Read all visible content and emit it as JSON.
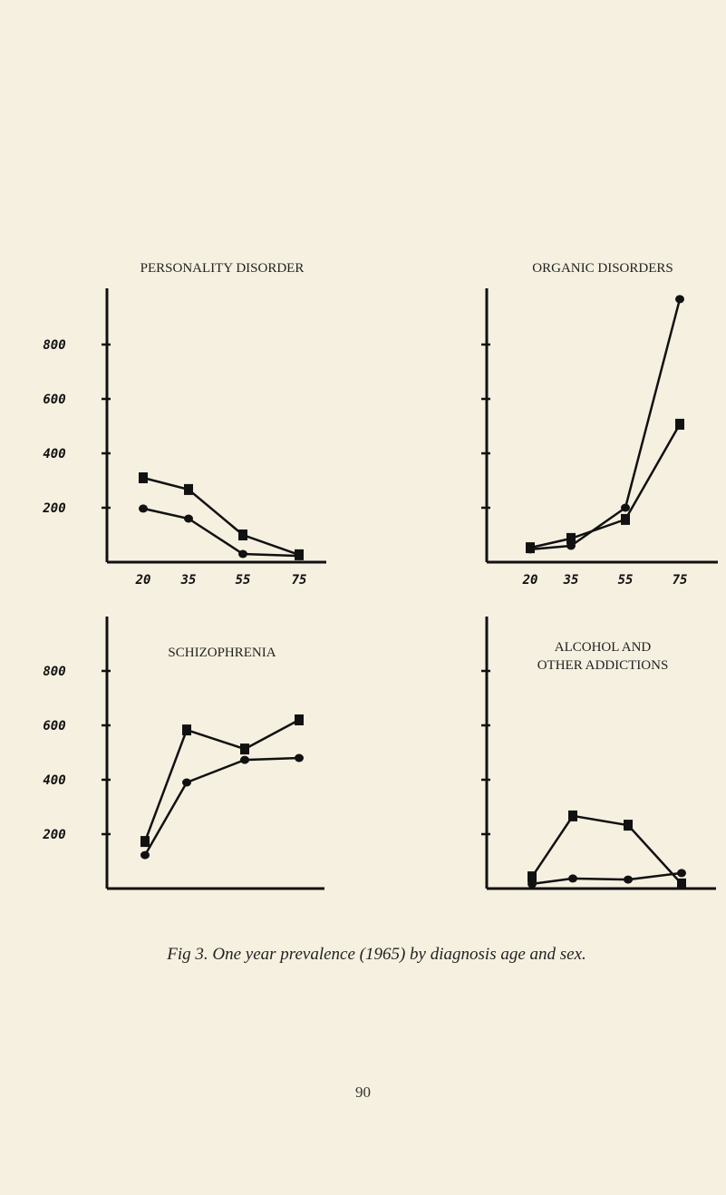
{
  "caption": "Fig 3.  One year prevalence (1965) by diagnosis age and sex.",
  "page_number": "90",
  "colors": {
    "background": "#f6f0e0",
    "ink": "#111111"
  },
  "chart_data": [
    {
      "type": "line",
      "title": "PERSONALITY DISORDER",
      "x": [
        20,
        35,
        55,
        75
      ],
      "x_tick_labels": [
        "20",
        "35",
        "55",
        "75"
      ],
      "y_tick_labels": [
        "800",
        "600",
        "400",
        "200"
      ],
      "ylim": [
        0,
        1000
      ],
      "series": [
        {
          "marker": "square",
          "values": [
            310,
            267,
            100,
            27
          ]
        },
        {
          "marker": "circle",
          "values": [
            197,
            160,
            30,
            23
          ]
        }
      ]
    },
    {
      "type": "line",
      "title": "ORGANIC DISORDERS",
      "x": [
        20,
        35,
        55,
        75
      ],
      "x_tick_labels": [
        "20",
        "35",
        "55",
        "75"
      ],
      "y_tick_labels": [],
      "ylim": [
        0,
        1000
      ],
      "series": [
        {
          "marker": "square",
          "values": [
            53,
            87,
            157,
            507
          ]
        },
        {
          "marker": "circle",
          "values": [
            47,
            60,
            200,
            967
          ]
        }
      ]
    },
    {
      "type": "line",
      "title": "SCHIZOPHRENIA",
      "x": [
        20,
        35,
        55,
        75
      ],
      "x_tick_labels": [],
      "y_tick_labels": [
        "800",
        "600",
        "400",
        "200"
      ],
      "ylim": [
        0,
        1000
      ],
      "series": [
        {
          "marker": "square",
          "values": [
            173,
            583,
            513,
            620
          ]
        },
        {
          "marker": "circle",
          "values": [
            123,
            390,
            473,
            480
          ]
        }
      ]
    },
    {
      "type": "line",
      "title": "ALCOHOL AND\nOTHER ADDICTIONS",
      "title_lines": [
        "ALCOHOL  AND",
        "OTHER  ADDICTIONS"
      ],
      "x": [
        20,
        35,
        55,
        75
      ],
      "x_tick_labels": [],
      "y_tick_labels": [],
      "ylim": [
        0,
        1000
      ],
      "series": [
        {
          "marker": "square",
          "values": [
            43,
            267,
            233,
            17
          ]
        },
        {
          "marker": "circle",
          "values": [
            17,
            37,
            33,
            57
          ]
        }
      ]
    }
  ]
}
